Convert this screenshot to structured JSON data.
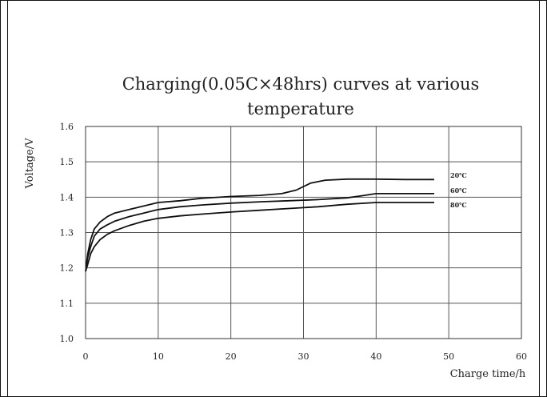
{
  "chart_data": {
    "type": "line",
    "title_lines": [
      "Charging(0.05C×48hrs) curves at various",
      "temperature"
    ],
    "xlabel": "Charge time/h",
    "ylabel": "Voltage/V",
    "xlim": [
      0,
      60
    ],
    "ylim": [
      1.0,
      1.6
    ],
    "x_ticks": [
      0,
      10,
      20,
      30,
      40,
      50,
      60
    ],
    "y_ticks": [
      "1.0",
      "1.1",
      "1.2",
      "1.3",
      "1.4",
      "1.5",
      "1.6"
    ],
    "grid": true,
    "series": [
      {
        "name": "20℃",
        "x": [
          0,
          0.3,
          0.7,
          1.2,
          2,
          3,
          4,
          6,
          8,
          10,
          13,
          16,
          20,
          24,
          27,
          29,
          31,
          33,
          36,
          40,
          44,
          48
        ],
        "y": [
          1.19,
          1.24,
          1.28,
          1.31,
          1.33,
          1.345,
          1.355,
          1.365,
          1.375,
          1.385,
          1.39,
          1.397,
          1.402,
          1.405,
          1.41,
          1.42,
          1.44,
          1.448,
          1.451,
          1.451,
          1.45,
          1.45
        ]
      },
      {
        "name": "60℃",
        "x": [
          0,
          0.3,
          0.7,
          1.2,
          2,
          3,
          4,
          6,
          8,
          10,
          13,
          16,
          20,
          24,
          28,
          32,
          36,
          38,
          40,
          44,
          48
        ],
        "y": [
          1.19,
          1.23,
          1.26,
          1.29,
          1.31,
          1.322,
          1.332,
          1.345,
          1.355,
          1.365,
          1.373,
          1.378,
          1.383,
          1.387,
          1.39,
          1.393,
          1.398,
          1.404,
          1.41,
          1.41,
          1.41
        ]
      },
      {
        "name": "80℃",
        "x": [
          0,
          0.3,
          0.7,
          1.2,
          2,
          3,
          4,
          6,
          8,
          10,
          13,
          16,
          20,
          24,
          28,
          32,
          36,
          40,
          44,
          48
        ],
        "y": [
          1.19,
          1.21,
          1.24,
          1.26,
          1.28,
          1.295,
          1.305,
          1.32,
          1.332,
          1.34,
          1.347,
          1.352,
          1.358,
          1.363,
          1.368,
          1.373,
          1.38,
          1.385,
          1.385,
          1.385
        ]
      }
    ],
    "legend_placement": "right"
  }
}
